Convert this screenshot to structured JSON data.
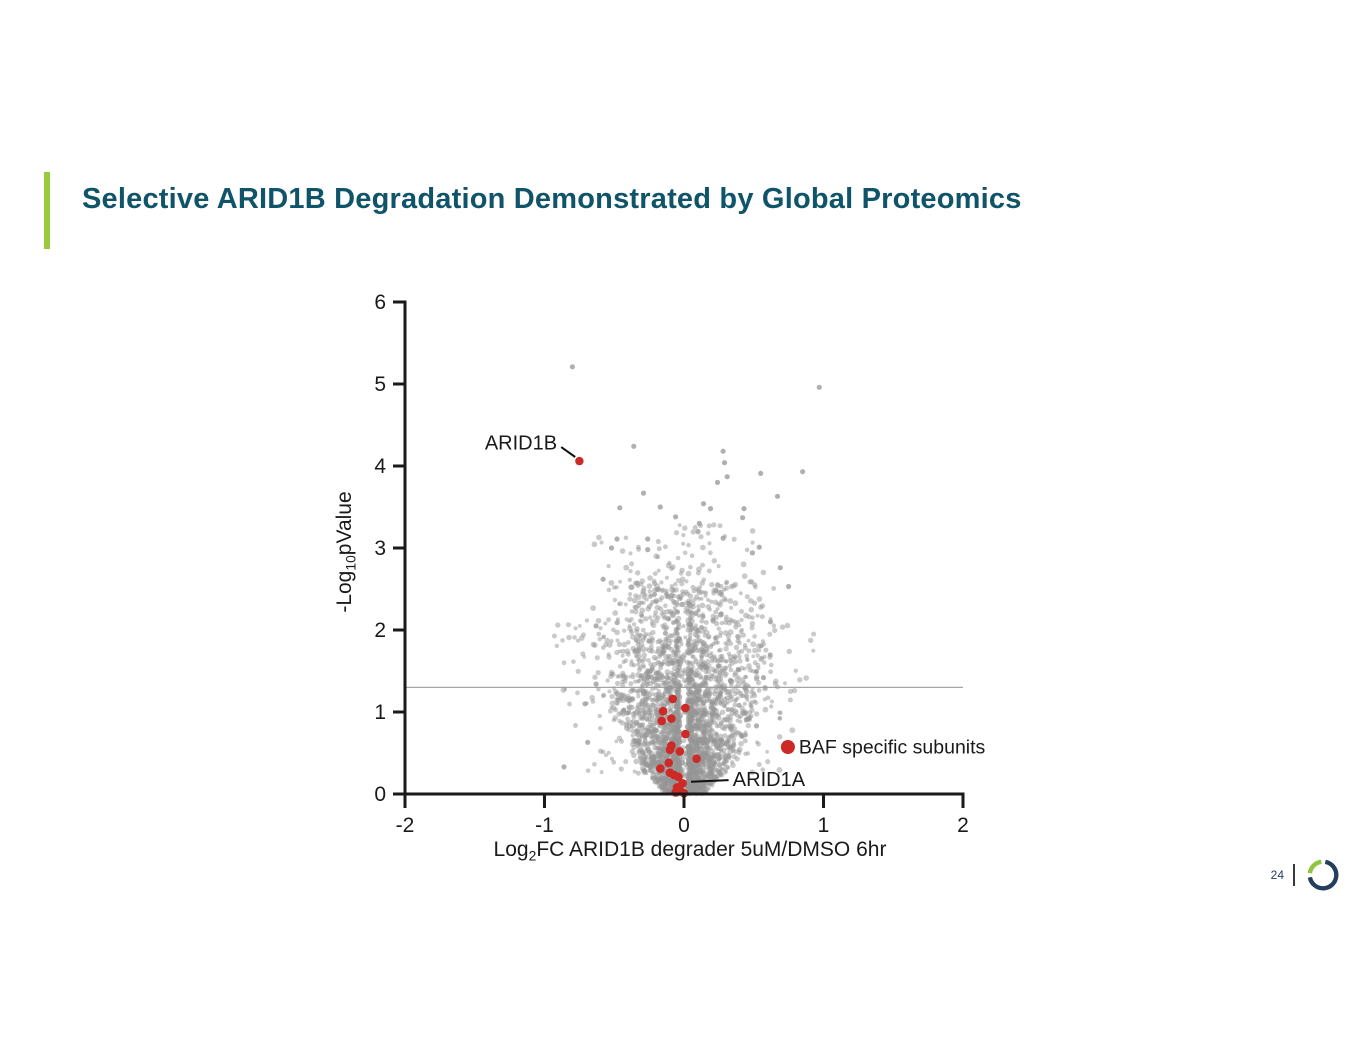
{
  "slide": {
    "title": "Selective ARID1B Degradation Demonstrated by Global Proteomics",
    "title_color": "#0F5468",
    "accent_color": "#9ACA3B"
  },
  "footer": {
    "page_number": "24",
    "logo": {
      "navy_color": "#253E5C",
      "green_color": "#8EC63F"
    }
  },
  "chart_data": {
    "type": "scatter",
    "variant": "volcano",
    "title": "",
    "xlabel": {
      "pre": "Log",
      "sub": "2",
      "post": "FC ARID1B degrader 5uM/DMSO 6hr"
    },
    "ylabel": {
      "pre": "-Log",
      "sub": "10",
      "post": "pValue"
    },
    "xlim": [
      -2,
      2
    ],
    "ylim": [
      0,
      6
    ],
    "xticks": [
      -2,
      -1,
      0,
      1,
      2
    ],
    "yticks": [
      0,
      1,
      2,
      3,
      4,
      5,
      6
    ],
    "grid": false,
    "significance_line_y": 1.3,
    "colors": {
      "background_points": "#969696",
      "highlight_points": "#CD2A27",
      "threshold_line": "#A6A6A6",
      "axis": "#1A1A1A",
      "text": "#1A1A1A"
    },
    "legend": {
      "label": "BAF specific subunits",
      "marker_x": 0.745,
      "marker_y": 0.573,
      "marker_radius": 7,
      "position": "inside-right-bottom"
    },
    "annotations": [
      {
        "label": "ARID1B",
        "point": [
          -0.75,
          4.06
        ],
        "draw_point": true,
        "text_pos": [
          -0.91,
          4.2
        ],
        "anchor": "end",
        "leader": [
          [
            -0.88,
            4.23
          ],
          [
            -0.78,
            4.11
          ]
        ]
      },
      {
        "label": "ARID1A",
        "point": [
          0.0,
          0.13
        ],
        "draw_point": false,
        "text_pos": [
          0.35,
          0.1
        ],
        "anchor": "start",
        "leader": [
          [
            0.32,
            0.17
          ],
          [
            0.05,
            0.15
          ]
        ]
      }
    ],
    "highlight_series": {
      "name": "BAF specific subunits",
      "color": "#CD2A27",
      "marker_radius": 4.3,
      "points": [
        [
          -0.08,
          1.16
        ],
        [
          -0.15,
          1.01
        ],
        [
          0.01,
          1.05
        ],
        [
          -0.09,
          0.92
        ],
        [
          -0.16,
          0.89
        ],
        [
          0.01,
          0.73
        ],
        [
          -0.09,
          0.59
        ],
        [
          -0.1,
          0.54
        ],
        [
          -0.03,
          0.52
        ],
        [
          0.09,
          0.43
        ],
        [
          -0.11,
          0.38
        ],
        [
          -0.17,
          0.31
        ],
        [
          -0.1,
          0.26
        ],
        [
          -0.07,
          0.23
        ],
        [
          -0.04,
          0.21
        ],
        [
          -0.01,
          0.13
        ],
        [
          -0.05,
          0.08
        ],
        [
          -0.03,
          0.05
        ],
        [
          -0.06,
          0.02
        ],
        [
          0.0,
          0.01
        ]
      ]
    },
    "notable_gray_points": [
      [
        -0.8,
        5.21
      ],
      [
        0.97,
        4.96
      ],
      [
        -0.36,
        4.24
      ],
      [
        0.28,
        4.18
      ],
      [
        0.29,
        4.04
      ],
      [
        0.55,
        3.91
      ],
      [
        0.85,
        3.93
      ],
      [
        0.31,
        3.87
      ],
      [
        0.24,
        3.8
      ],
      [
        -0.29,
        3.67
      ],
      [
        0.67,
        3.63
      ],
      [
        -0.46,
        3.49
      ],
      [
        -0.17,
        3.5
      ],
      [
        0.14,
        3.54
      ],
      [
        0.19,
        3.48
      ],
      [
        0.43,
        3.48
      ],
      [
        -0.06,
        3.38
      ],
      [
        0.42,
        3.37
      ],
      [
        0.11,
        3.3
      ],
      [
        0.1,
        3.2
      ],
      [
        -0.48,
        3.11
      ],
      [
        -0.52,
        3.0
      ],
      [
        -0.26,
        3.11
      ],
      [
        -0.26,
        2.98
      ],
      [
        0.28,
        3.12
      ],
      [
        0.54,
        3.01
      ],
      [
        0.49,
        2.94
      ],
      [
        0.75,
        2.53
      ],
      [
        0.69,
        2.76
      ],
      [
        -0.58,
        2.62
      ],
      [
        -0.63,
        2.05
      ],
      [
        0.62,
        2.1
      ],
      [
        0.57,
        1.42
      ],
      [
        0.52,
        0.83
      ],
      [
        -0.63,
        1.34
      ],
      [
        -0.71,
        1.1
      ],
      [
        -0.69,
        0.63
      ],
      [
        -0.86,
        0.33
      ]
    ],
    "background_cloud": {
      "count_core": 3000,
      "count_wings": 170,
      "count_high": 80,
      "seed": 20240807,
      "sigma_y": 1.05,
      "uniform_mix": 0.22,
      "uniform_max_y": 2.6,
      "max_y": 3.35,
      "gap_halfwidth": 0.027,
      "right_bias": 1.06,
      "opacity": 0.5
    }
  }
}
